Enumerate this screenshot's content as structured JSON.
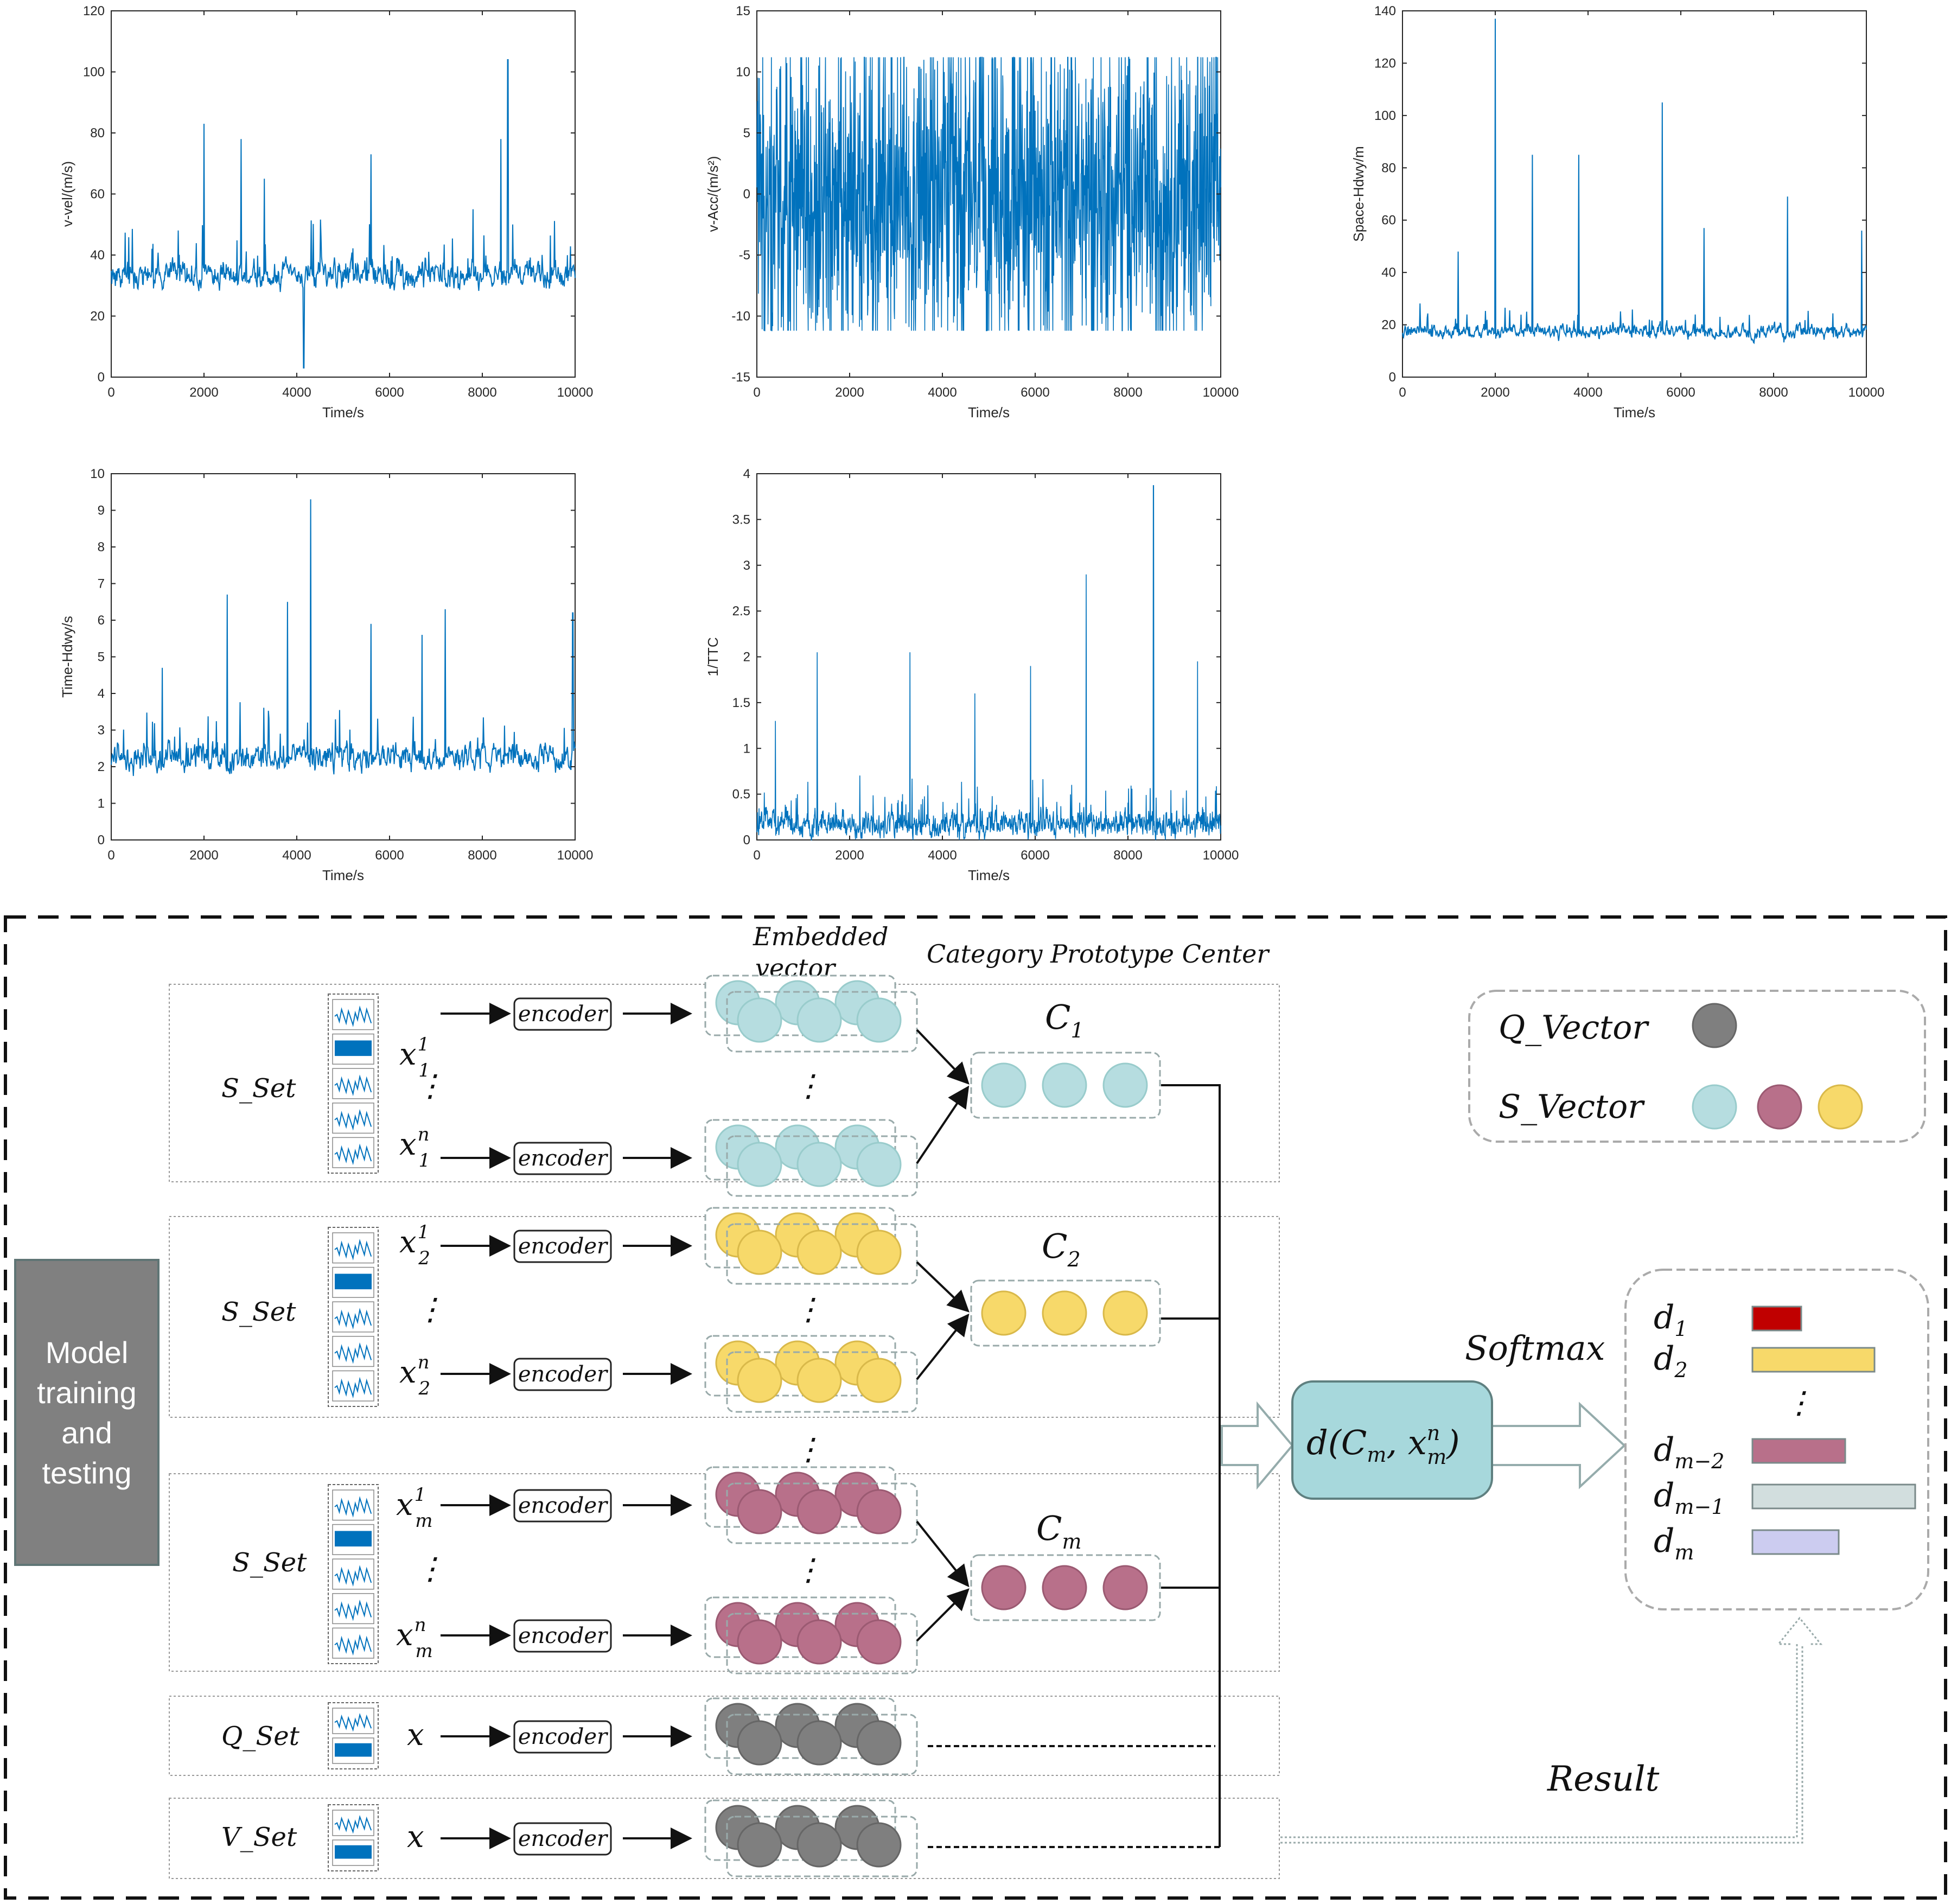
{
  "chart_data": [
    {
      "type": "line",
      "ylabel": "v-vel/(m/s)",
      "xlabel": "Time/s",
      "xlim": [
        0,
        10000
      ],
      "ylim": [
        0,
        120
      ],
      "xticks": [
        "0",
        "2000",
        "4000",
        "6000",
        "8000",
        "10000"
      ],
      "yticks": [
        "0",
        "20",
        "40",
        "60",
        "80",
        "100",
        "120"
      ],
      "baseline": 33,
      "noise": 7,
      "clip": [
        3,
        120
      ],
      "spikes": [
        [
          2000,
          83
        ],
        [
          2800,
          78
        ],
        [
          3300,
          65
        ],
        [
          4150,
          3
        ],
        [
          5600,
          73
        ],
        [
          8400,
          78
        ],
        [
          8550,
          104
        ],
        [
          7800,
          55
        ]
      ],
      "color": "#0072BD"
    },
    {
      "type": "line",
      "ylabel": "v-Acc/(m/s²)",
      "xlabel": "Time/s",
      "xlim": [
        0,
        10000
      ],
      "ylim": [
        -15,
        15
      ],
      "xticks": [
        "0",
        "2000",
        "4000",
        "6000",
        "8000",
        "10000"
      ],
      "yticks": [
        "-15",
        "-10",
        "-5",
        "0",
        "5",
        "10",
        "15"
      ],
      "baseline": 0,
      "noise": 11,
      "clip": [
        -11.2,
        11.2
      ],
      "spikes": [],
      "color": "#0072BD",
      "dense": true
    },
    {
      "type": "line",
      "ylabel": "Space-Hdwy/m",
      "xlabel": "Time/s",
      "xlim": [
        0,
        10000
      ],
      "ylim": [
        0,
        140
      ],
      "xticks": [
        "0",
        "2000",
        "4000",
        "6000",
        "8000",
        "10000"
      ],
      "yticks": [
        "0",
        "20",
        "40",
        "60",
        "80",
        "100",
        "120",
        "140"
      ],
      "baseline": 17,
      "noise": 4,
      "clip": [
        5,
        140
      ],
      "spikes": [
        [
          2000,
          137
        ],
        [
          2800,
          85
        ],
        [
          3800,
          85
        ],
        [
          5600,
          105
        ],
        [
          8300,
          69
        ],
        [
          6500,
          57
        ],
        [
          9900,
          56
        ],
        [
          1200,
          48
        ]
      ],
      "color": "#0072BD"
    },
    {
      "type": "line",
      "ylabel": "Time-Hdwy/s",
      "xlabel": "Time/s",
      "xlim": [
        0,
        10000
      ],
      "ylim": [
        0,
        10
      ],
      "xticks": [
        "0",
        "2000",
        "4000",
        "6000",
        "8000",
        "10000"
      ],
      "yticks": [
        "0",
        "1",
        "2",
        "3",
        "4",
        "5",
        "6",
        "7",
        "8",
        "9",
        "10"
      ],
      "baseline": 2.2,
      "noise": 0.6,
      "clip": [
        0.6,
        10
      ],
      "spikes": [
        [
          4300,
          9.3
        ],
        [
          2500,
          6.7
        ],
        [
          3800,
          6.5
        ],
        [
          5600,
          5.9
        ],
        [
          6700,
          5.6
        ],
        [
          7200,
          6.3
        ],
        [
          9950,
          6.2
        ],
        [
          1100,
          4.7
        ]
      ],
      "color": "#0072BD"
    },
    {
      "type": "line",
      "ylabel": "1/TTC",
      "xlabel": "Time/s",
      "xlim": [
        0,
        10000
      ],
      "ylim": [
        0,
        4
      ],
      "xticks": [
        "0",
        "2000",
        "4000",
        "6000",
        "8000",
        "10000"
      ],
      "yticks": [
        "0",
        "0.5",
        "1",
        "1.5",
        "2",
        "2.5",
        "3",
        "3.5",
        "4"
      ],
      "baseline": 0.15,
      "noise": 0.22,
      "clip": [
        0,
        4
      ],
      "dense": true,
      "spikes": [
        [
          1300,
          2.05
        ],
        [
          3300,
          2.05
        ],
        [
          5900,
          1.9
        ],
        [
          7100,
          2.9
        ],
        [
          8550,
          3.87
        ],
        [
          9500,
          1.95
        ],
        [
          400,
          1.3
        ],
        [
          4700,
          1.6
        ]
      ],
      "color": "#0072BD"
    }
  ],
  "diagram": {
    "model_box": [
      "Model",
      "training",
      "and",
      "testing"
    ],
    "embedded_vector": [
      "Embedded",
      "vector"
    ],
    "category_prototype_center": "Category Prototype Center",
    "encoder": "encoder",
    "s_set": "S_Set",
    "q_set": "Q_Set",
    "v_set": "V_Set",
    "x": "x",
    "ellipsis": "⋮",
    "centers": [
      {
        "base": "C",
        "sub": "1"
      },
      {
        "base": "C",
        "sub": "2"
      },
      {
        "base": "C",
        "sub": "m"
      }
    ],
    "inputs": [
      {
        "base": "x",
        "sup": "1",
        "sub": "1"
      },
      {
        "base": "x",
        "sup": "n",
        "sub": "1"
      },
      {
        "base": "x",
        "sup": "1",
        "sub": "2"
      },
      {
        "base": "x",
        "sup": "n",
        "sub": "2"
      },
      {
        "base": "x",
        "sup": "1",
        "sub": "m"
      },
      {
        "base": "x",
        "sup": "n",
        "sub": "m"
      }
    ],
    "distance": {
      "pre": "d(",
      "c": "C",
      "c_sub": "m",
      "comma": ", ",
      "x": "x",
      "x_sup": "n",
      "x_sub": "m",
      "post": ")"
    },
    "softmax": "Softmax",
    "result": "Result",
    "legend": {
      "q_vector": "Q_Vector",
      "s_vector": "S_Vector"
    },
    "outputs": [
      {
        "base": "d",
        "sub": "1",
        "color": "#C00000",
        "len": 0.3
      },
      {
        "base": "d",
        "sub": "2",
        "color": "#F7D96A",
        "len": 0.75
      },
      {
        "base": "d",
        "sub": "m−2",
        "color": "#B8708A",
        "len": 0.57
      },
      {
        "base": "d",
        "sub": "m−1",
        "color": "#D2DEDE",
        "len": 1.0
      },
      {
        "base": "d",
        "sub": "m",
        "color": "#CCCCF0",
        "len": 0.53
      }
    ],
    "colors": {
      "cyan": "#B6DDE0",
      "yellow": "#F7D96A",
      "pink": "#B8708A",
      "gray": "#7F7F7F",
      "model": "#808080",
      "dist": "#A7D8DC",
      "blue": "#0072BD"
    }
  }
}
